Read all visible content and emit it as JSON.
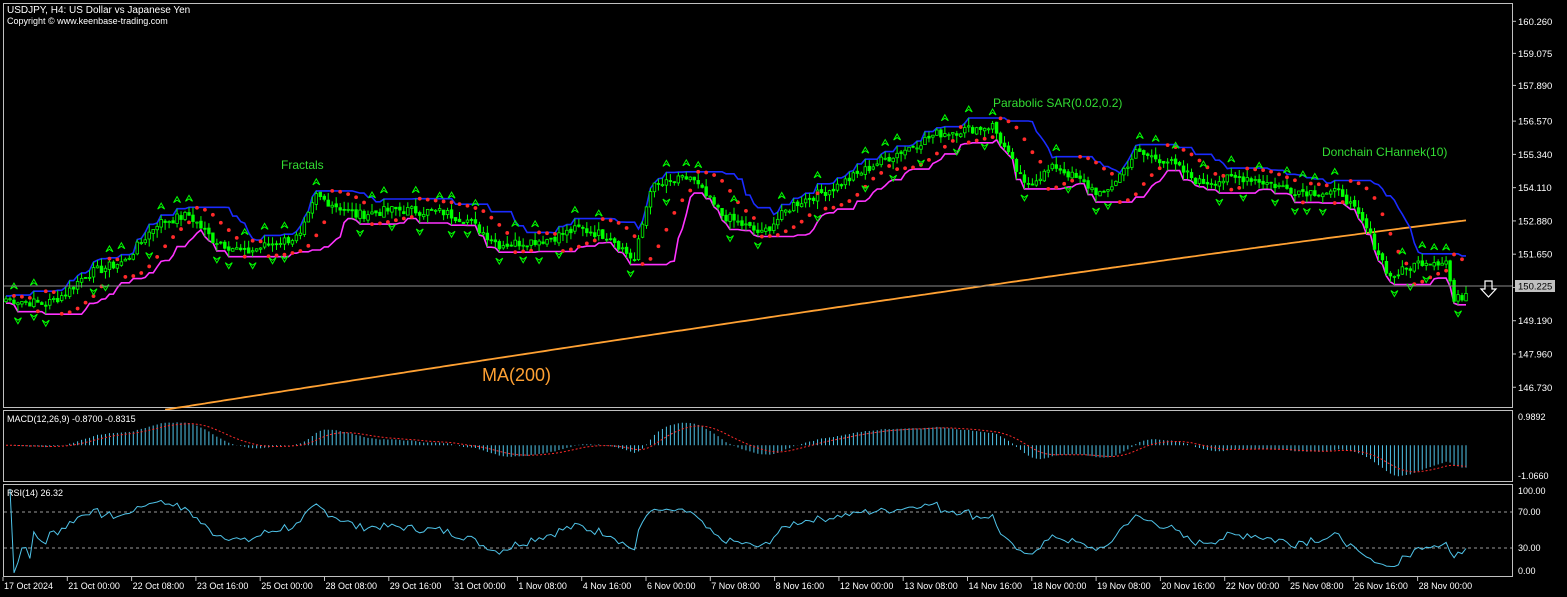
{
  "header": {
    "title": "USDJPY, H4:  US Dollar vs Japanese Yen",
    "copyright": "Copyright © www.keenbase-trading.com"
  },
  "annotations": {
    "fractals": "Fractals",
    "sar": "Parabolic SAR(0.02,0.2)",
    "donchian": "Donchain CHannek(10)",
    "ma": "MA(200)"
  },
  "colors": {
    "background": "#000000",
    "frame": "#c0c0c0",
    "candle": "#00ff00",
    "donchian_upper": "#1a2bff",
    "donchian_lower": "#ff33ff",
    "sar": "#ff2a2a",
    "ma": "#ffa133",
    "macd_hist": "#4fc3e8",
    "macd_signal": "#ff2a2a",
    "rsi": "#4fc3e8",
    "label_green": "#33dd33",
    "label_orange": "#ffa133",
    "current_price_box": "#c0c0c0"
  },
  "price_axis": {
    "ticks": [
      "160.260",
      "159.075",
      "157.890",
      "156.570",
      "155.340",
      "154.110",
      "152.880",
      "151.650",
      "150.420",
      "149.190",
      "147.960",
      "146.730"
    ],
    "current_price": "150.225"
  },
  "time_axis": {
    "labels": [
      "17 Oct 2024",
      "21 Oct 00:00",
      "22 Oct 08:00",
      "23 Oct 16:00",
      "25 Oct 00:00",
      "28 Oct 08:00",
      "29 Oct 16:00",
      "31 Oct 00:00",
      "1 Nov 08:00",
      "4 Nov 16:00",
      "6 Nov 00:00",
      "7 Nov 08:00",
      "8 Nov 16:00",
      "12 Nov 00:00",
      "13 Nov 08:00",
      "14 Nov 16:00",
      "18 Nov 00:00",
      "19 Nov 08:00",
      "20 Nov 16:00",
      "22 Nov 00:00",
      "25 Nov 08:00",
      "26 Nov 16:00",
      "28 Nov 00:00"
    ]
  },
  "macd": {
    "label": "MACD(12,26,9) -0.8700 -0.8315",
    "ticks": [
      "0.9892",
      "-1.0660"
    ]
  },
  "rsi": {
    "label": "RSI(14) 26.32",
    "ticks": [
      "100.00",
      "70.00",
      "30.00",
      "0.00"
    ]
  },
  "chart_data": {
    "type": "line",
    "symbol": "USDJPY",
    "timeframe": "H4",
    "price_range": [
      146.0,
      160.9
    ],
    "anchors": [
      {
        "idx": 0,
        "price": 150.0
      },
      {
        "idx": 10,
        "price": 149.8
      },
      {
        "idx": 15,
        "price": 150.2
      },
      {
        "idx": 20,
        "price": 150.9
      },
      {
        "idx": 30,
        "price": 151.4
      },
      {
        "idx": 38,
        "price": 152.8
      },
      {
        "idx": 46,
        "price": 153.1
      },
      {
        "idx": 52,
        "price": 152.2
      },
      {
        "idx": 60,
        "price": 151.7
      },
      {
        "idx": 68,
        "price": 152.1
      },
      {
        "idx": 74,
        "price": 152.3
      },
      {
        "idx": 78,
        "price": 153.8
      },
      {
        "idx": 88,
        "price": 153.1
      },
      {
        "idx": 98,
        "price": 153.3
      },
      {
        "idx": 110,
        "price": 153.2
      },
      {
        "idx": 116,
        "price": 152.9
      },
      {
        "idx": 124,
        "price": 152.0
      },
      {
        "idx": 136,
        "price": 152.2
      },
      {
        "idx": 144,
        "price": 152.6
      },
      {
        "idx": 152,
        "price": 152.3
      },
      {
        "idx": 158,
        "price": 151.4
      },
      {
        "idx": 162,
        "price": 154.1
      },
      {
        "idx": 172,
        "price": 154.5
      },
      {
        "idx": 180,
        "price": 153.1
      },
      {
        "idx": 190,
        "price": 152.4
      },
      {
        "idx": 198,
        "price": 153.5
      },
      {
        "idx": 208,
        "price": 154.1
      },
      {
        "idx": 220,
        "price": 155.1
      },
      {
        "idx": 234,
        "price": 156.1
      },
      {
        "idx": 248,
        "price": 156.4
      },
      {
        "idx": 256,
        "price": 154.2
      },
      {
        "idx": 264,
        "price": 154.9
      },
      {
        "idx": 276,
        "price": 153.8
      },
      {
        "idx": 284,
        "price": 155.4
      },
      {
        "idx": 292,
        "price": 155.1
      },
      {
        "idx": 300,
        "price": 154.3
      },
      {
        "idx": 312,
        "price": 154.5
      },
      {
        "idx": 324,
        "price": 154.0
      },
      {
        "idx": 336,
        "price": 153.9
      },
      {
        "idx": 342,
        "price": 152.6
      },
      {
        "idx": 348,
        "price": 150.8
      },
      {
        "idx": 356,
        "price": 151.4
      },
      {
        "idx": 362,
        "price": 151.4
      },
      {
        "idx": 364,
        "price": 149.9
      },
      {
        "idx": 367,
        "price": 150.2
      }
    ],
    "ma200": {
      "start_price": 145.9,
      "end_price": 152.9
    },
    "macd_histogram_range": [
      -1.066,
      0.9892
    ],
    "rsi_range": [
      0,
      100
    ],
    "rsi_levels": [
      70,
      30
    ]
  }
}
